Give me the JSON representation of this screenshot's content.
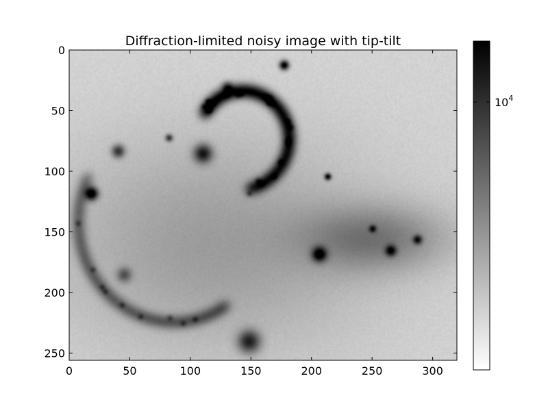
{
  "chart_data": {
    "type": "heatmap",
    "title": "Diffraction-limited noisy image with tip-tilt",
    "xlabel": "",
    "ylabel": "",
    "xlim": [
      0,
      320
    ],
    "ylim": [
      256,
      0
    ],
    "x_ticks": [
      "0",
      "50",
      "100",
      "150",
      "200",
      "250",
      "300"
    ],
    "y_ticks": [
      "0",
      "50",
      "100",
      "150",
      "200",
      "250"
    ],
    "colormap": "gray_r",
    "color_scale": "log",
    "colorbar": {
      "tick_label_base": "10",
      "tick_label_exp": "4",
      "tick_value": 10000
    },
    "background_level": 0.08,
    "features": [
      {
        "kind": "spiral-arc",
        "cx": 95,
        "cy": 150,
        "r": 92,
        "a0": 150,
        "a1": 300,
        "amp": 0.35
      },
      {
        "kind": "spiral-arc",
        "cx": 140,
        "cy": 70,
        "r": 45,
        "a0": -80,
        "a1": 150,
        "amp": 0.4
      },
      {
        "kind": "blob",
        "x": 18,
        "y": 118,
        "s": 3.5,
        "amp": 1.0
      },
      {
        "kind": "blob",
        "x": 110,
        "y": 85,
        "s": 5.0,
        "amp": 0.75
      },
      {
        "kind": "blob",
        "x": 177,
        "y": 12,
        "s": 2.5,
        "amp": 1.0
      },
      {
        "kind": "blob",
        "x": 206,
        "y": 168,
        "s": 4.0,
        "amp": 0.9
      },
      {
        "kind": "blob",
        "x": 148,
        "y": 240,
        "s": 6.0,
        "amp": 0.7
      },
      {
        "kind": "blob",
        "x": 213,
        "y": 104,
        "s": 1.8,
        "amp": 0.9
      },
      {
        "kind": "blob",
        "x": 265,
        "y": 165,
        "s": 3.0,
        "amp": 0.75
      },
      {
        "kind": "blob",
        "x": 287,
        "y": 156,
        "s": 2.5,
        "amp": 0.7
      },
      {
        "kind": "blob",
        "x": 40,
        "y": 83,
        "s": 3.5,
        "amp": 0.6
      },
      {
        "kind": "blob",
        "x": 45,
        "y": 185,
        "s": 4.0,
        "amp": 0.4
      },
      {
        "kind": "blob",
        "x": 250,
        "y": 147,
        "s": 2.0,
        "amp": 0.6
      },
      {
        "kind": "blob",
        "x": 130,
        "y": 30,
        "s": 3.0,
        "amp": 0.5
      },
      {
        "kind": "blob",
        "x": 82,
        "y": 72,
        "s": 2.0,
        "amp": 0.6
      },
      {
        "kind": "diffuse",
        "x": 120,
        "y": 160,
        "sx": 90,
        "sy": 60,
        "amp": 0.18
      },
      {
        "kind": "diffuse",
        "x": 250,
        "y": 155,
        "sx": 40,
        "sy": 18,
        "amp": 0.3
      },
      {
        "kind": "diffuse",
        "x": 360,
        "y": 120,
        "sx": 20,
        "sy": 20,
        "amp": 0.05
      }
    ]
  }
}
